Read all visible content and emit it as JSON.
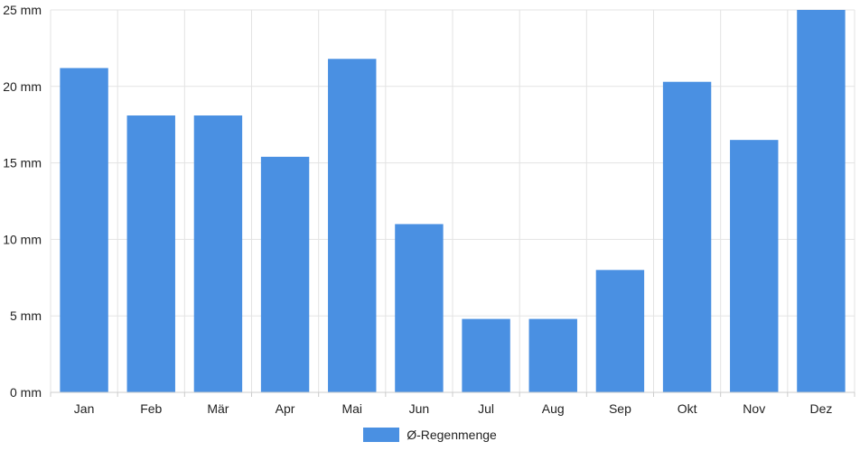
{
  "chart_data": {
    "type": "bar",
    "categories": [
      "Jan",
      "Feb",
      "Mär",
      "Apr",
      "Mai",
      "Jun",
      "Jul",
      "Aug",
      "Sep",
      "Okt",
      "Nov",
      "Dez"
    ],
    "series": [
      {
        "name": "Ø-Regenmenge",
        "values": [
          21.2,
          18.1,
          18.1,
          15.4,
          21.8,
          11.0,
          4.8,
          4.8,
          8.0,
          20.3,
          16.5,
          25.0
        ]
      }
    ],
    "yticks": [
      0,
      5,
      10,
      15,
      20,
      25
    ],
    "ytick_labels": [
      "0 mm",
      "5 mm",
      "10 mm",
      "15 mm",
      "20 mm",
      "25 mm"
    ],
    "ylim": [
      0,
      25
    ],
    "grid": true,
    "legend_position": "bottom-center",
    "colors": {
      "bar": "#4a90e2",
      "grid": "#e3e3e3",
      "axis": "#cccccc"
    }
  }
}
